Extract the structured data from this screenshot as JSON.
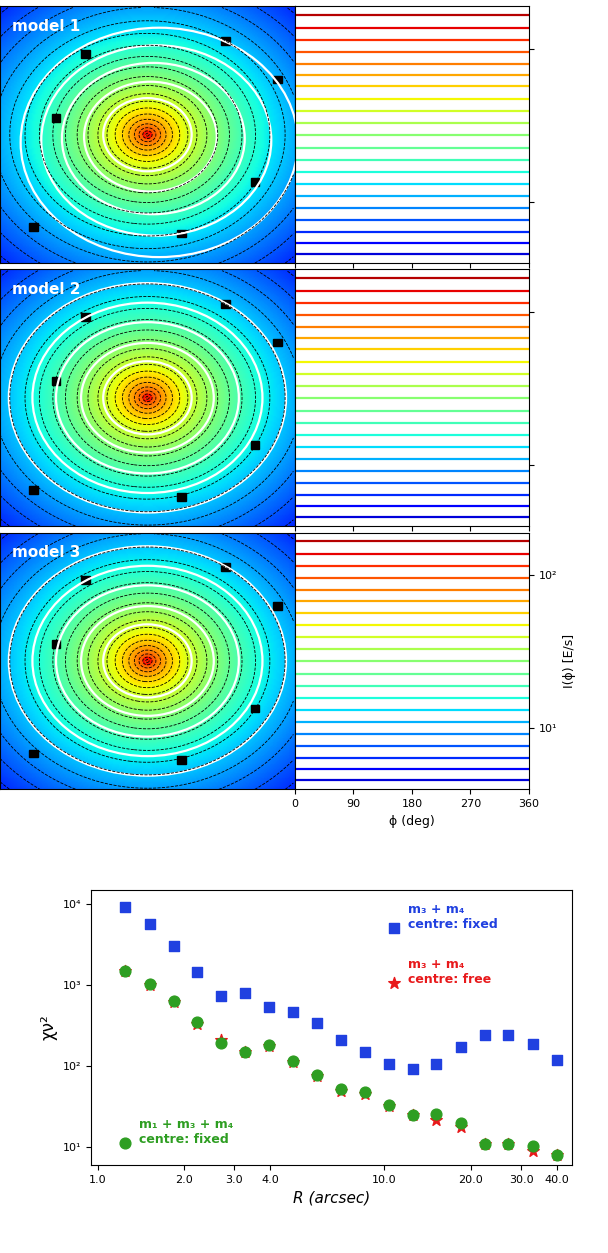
{
  "chart_data": [
    {
      "type": "line",
      "title": "model 1",
      "log": "y",
      "tick_labels": false,
      "xlim": [
        0,
        360
      ],
      "xticks": [
        0,
        90,
        180,
        270,
        360
      ],
      "ylim": [
        4,
        190
      ],
      "yticks": [
        {
          "value": 10,
          "label": "10¹"
        },
        {
          "value": 100,
          "label": "10²"
        }
      ],
      "levels": [
        167,
        138,
        115,
        96,
        80,
        68,
        57,
        47,
        39.5,
        33,
        27.5,
        22.7,
        18.9,
        15.8,
        13.2,
        11.0,
        9.2,
        7.7,
        6.4,
        5.4,
        4.6
      ]
    },
    {
      "type": "line",
      "title": "model 2",
      "log": "y",
      "tick_labels": false,
      "xlim": [
        0,
        360
      ],
      "xticks": [
        0,
        90,
        180,
        270,
        360
      ],
      "ylim": [
        4,
        190
      ],
      "yticks": [
        {
          "value": 10,
          "label": "10¹"
        },
        {
          "value": 100,
          "label": "10²"
        }
      ],
      "levels": [
        167,
        138,
        115,
        96,
        80,
        68,
        57,
        47,
        39.5,
        33,
        27.5,
        22.7,
        18.9,
        15.8,
        13.2,
        11.0,
        9.2,
        7.7,
        6.4,
        5.4,
        4.6
      ]
    },
    {
      "type": "line",
      "title": "model 3",
      "log": "y",
      "xlabel": "ϕ (deg)",
      "ylabel": "I(ϕ) [E/s]",
      "xlim": [
        0,
        360
      ],
      "xticks": [
        0,
        90,
        180,
        270,
        360
      ],
      "ylim": [
        4,
        190
      ],
      "yticks": [
        {
          "value": 10,
          "label": "10¹"
        },
        {
          "value": 100,
          "label": "10²"
        }
      ],
      "levels": [
        167,
        138,
        115,
        96,
        80,
        68,
        57,
        47,
        39.5,
        33,
        27.5,
        22.7,
        18.9,
        15.8,
        13.2,
        11.0,
        9.2,
        7.7,
        6.4,
        5.4,
        4.6
      ]
    },
    {
      "type": "scatter",
      "log": true,
      "xlabel": "R (arcsec)",
      "ylabel": "χν²",
      "xlim": [
        0.95,
        45
      ],
      "xticks": [
        {
          "value": 1,
          "label": "1.0"
        },
        {
          "value": 2,
          "label": "2.0"
        },
        {
          "value": 3,
          "label": "3.0"
        },
        {
          "value": 4,
          "label": "4.0"
        },
        {
          "value": 10,
          "label": "10.0"
        },
        {
          "value": 20,
          "label": "20.0"
        },
        {
          "value": 30,
          "label": "30.0"
        },
        {
          "value": 40,
          "label": "40.0"
        }
      ],
      "ylim": [
        6,
        15000
      ],
      "yticks": [
        {
          "value": 10,
          "label": "10¹"
        },
        {
          "value": 100,
          "label": "10²"
        },
        {
          "value": 1000,
          "label": "10³"
        },
        {
          "value": 10000,
          "label": "10⁴"
        }
      ],
      "x": [
        1.25,
        1.52,
        1.84,
        2.23,
        2.7,
        3.27,
        3.96,
        4.8,
        5.82,
        7.05,
        8.55,
        10.4,
        12.6,
        15.2,
        18.5,
        22.4,
        27.1,
        32.9,
        39.9
      ],
      "series": [
        {
          "name": "m₃ + m₄\ncentre: fixed",
          "color": "#2040e0",
          "marker": "square",
          "values": [
            9200,
            5700,
            3000,
            1450,
            730,
            800,
            540,
            460,
            340,
            210,
            150,
            105,
            92,
            105,
            170,
            240,
            245,
            190,
            120
          ]
        },
        {
          "name": "m₃ + m₄\ncentre: free",
          "color": "#e8191b",
          "marker": "star",
          "values": [
            1480,
            1010,
            620,
            330,
            210,
            148,
            175,
            114,
            75,
            49,
            46,
            32,
            25,
            22,
            18,
            11,
            11,
            9,
            8
          ]
        },
        {
          "name": "m₁ + m₃ + m₄\ncentre: fixed",
          "color": "#2e9e22",
          "marker": "circle",
          "values": [
            1500,
            1030,
            640,
            350,
            195,
            150,
            180,
            117,
            78,
            52,
            48,
            33,
            25,
            26,
            20,
            11,
            11,
            10.5,
            8
          ]
        }
      ]
    }
  ]
}
